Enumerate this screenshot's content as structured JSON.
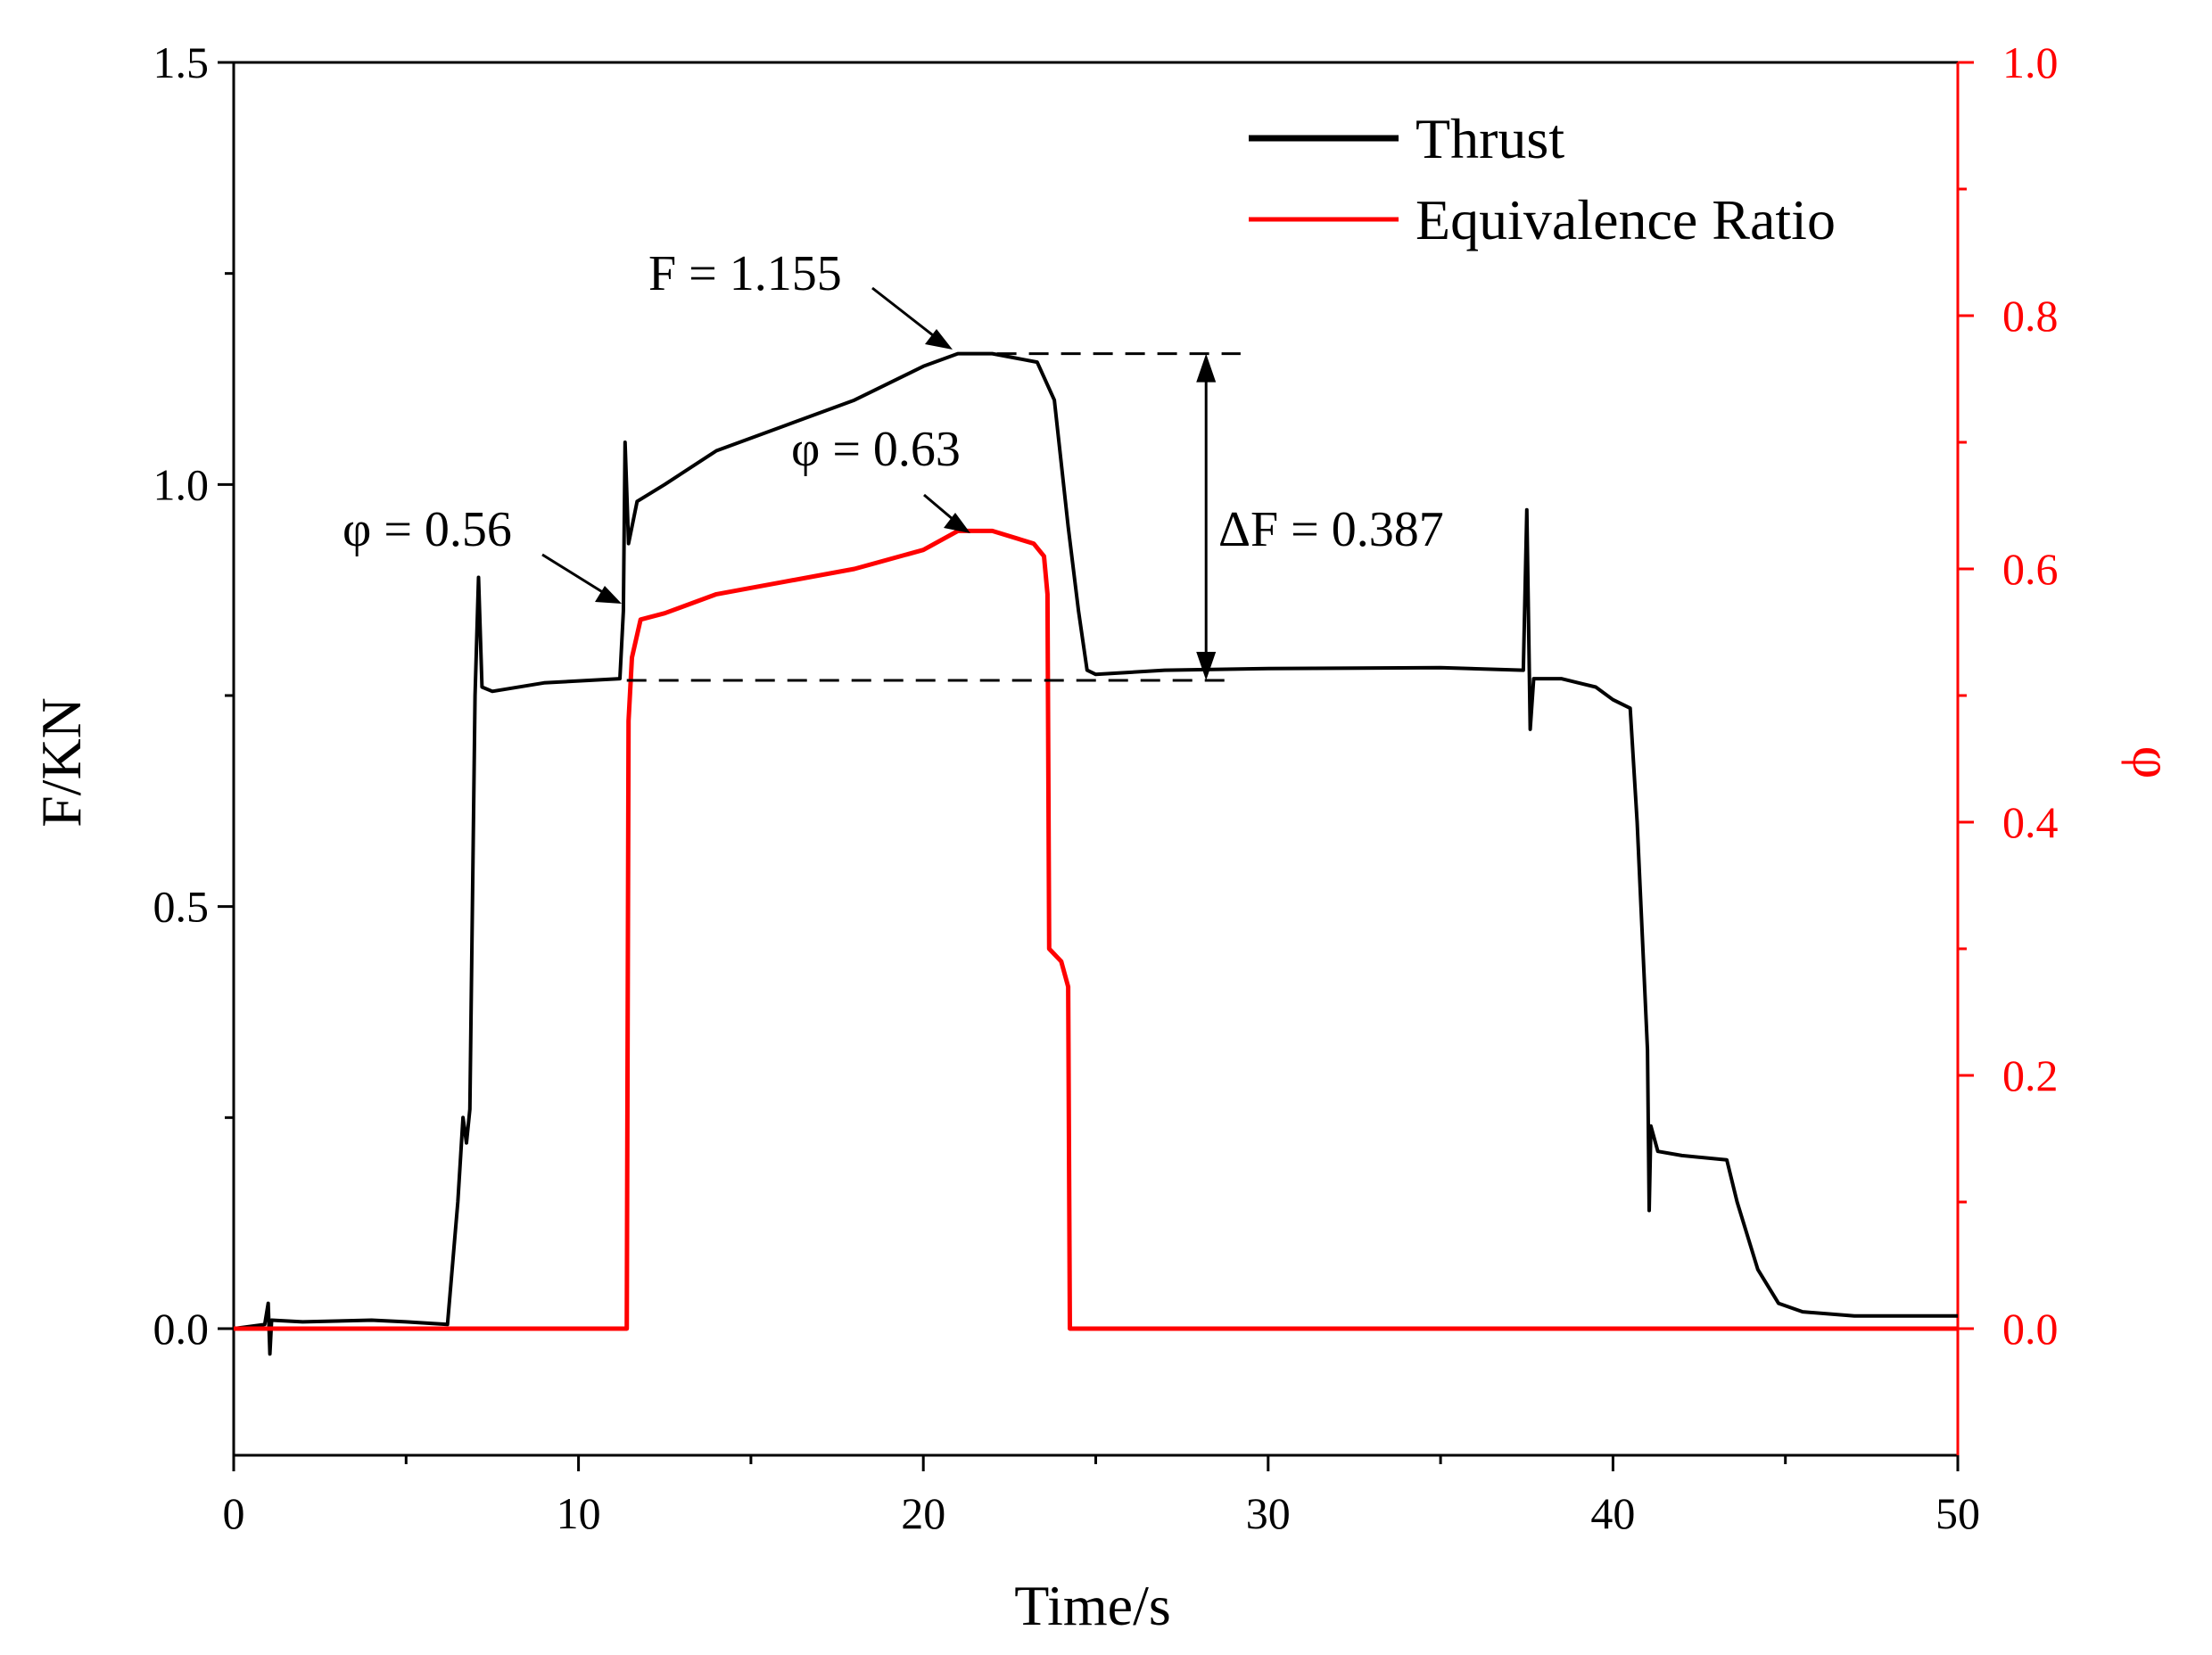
{
  "chart_data": {
    "type": "line",
    "x_axis": {
      "label": "Time/s",
      "range": [
        0,
        50
      ],
      "major_ticks": [
        0,
        10,
        20,
        30,
        40,
        50
      ],
      "tick_labels": [
        "0",
        "10",
        "20",
        "30",
        "40",
        "50"
      ],
      "minor_step": 5
    },
    "y_axis_left": {
      "label": "F/KN",
      "range": [
        -0.15,
        1.5
      ],
      "major_ticks": [
        0.0,
        0.5,
        1.0,
        1.5
      ],
      "tick_labels": [
        "0.0",
        "0.5",
        "1.0",
        "1.5"
      ],
      "minor_step": 0.25
    },
    "y_axis_right": {
      "label": "φ",
      "color": "#ff0000",
      "range": [
        -0.1,
        1.0
      ],
      "major_ticks": [
        0.0,
        0.2,
        0.4,
        0.6,
        0.8,
        1.0
      ],
      "tick_labels": [
        "0.0",
        "0.2",
        "0.4",
        "0.6",
        "0.8",
        "1.0"
      ],
      "minor_step": 0.1
    },
    "legend": {
      "position": "top-right",
      "entries": [
        {
          "label": "Thrust",
          "color": "#000000"
        },
        {
          "label": "Equivalence Ratio",
          "color": "#ff0000"
        }
      ]
    },
    "series": [
      {
        "name": "Thrust",
        "axis": "left",
        "color": "#000000",
        "points": [
          [
            0,
            0.0
          ],
          [
            0.9,
            0.005
          ],
          [
            1.0,
            0.03
          ],
          [
            1.05,
            -0.03
          ],
          [
            1.1,
            0.01
          ],
          [
            2,
            0.008
          ],
          [
            4,
            0.01
          ],
          [
            5,
            0.008
          ],
          [
            6.2,
            0.005
          ],
          [
            6.5,
            0.15
          ],
          [
            6.65,
            0.25
          ],
          [
            6.75,
            0.22
          ],
          [
            6.85,
            0.26
          ],
          [
            7.0,
            0.75
          ],
          [
            7.1,
            0.89
          ],
          [
            7.2,
            0.76
          ],
          [
            7.5,
            0.755
          ],
          [
            9,
            0.765
          ],
          [
            11.2,
            0.77
          ],
          [
            11.3,
            0.85
          ],
          [
            11.35,
            1.05
          ],
          [
            11.45,
            0.93
          ],
          [
            11.7,
            0.98
          ],
          [
            12.5,
            1.0
          ],
          [
            14,
            1.04
          ],
          [
            16,
            1.07
          ],
          [
            18,
            1.1
          ],
          [
            20,
            1.14
          ],
          [
            21,
            1.155
          ],
          [
            22,
            1.155
          ],
          [
            23.3,
            1.145
          ],
          [
            23.8,
            1.1
          ],
          [
            24.2,
            0.95
          ],
          [
            24.5,
            0.85
          ],
          [
            24.75,
            0.78
          ],
          [
            25,
            0.775
          ],
          [
            27,
            0.78
          ],
          [
            30,
            0.782
          ],
          [
            35,
            0.783
          ],
          [
            37.4,
            0.78
          ],
          [
            37.5,
            0.97
          ],
          [
            37.6,
            0.71
          ],
          [
            37.7,
            0.77
          ],
          [
            38.5,
            0.77
          ],
          [
            39.5,
            0.76
          ],
          [
            40,
            0.745
          ],
          [
            40.5,
            0.735
          ],
          [
            40.7,
            0.6
          ],
          [
            41,
            0.33
          ],
          [
            41.05,
            0.14
          ],
          [
            41.1,
            0.24
          ],
          [
            41.3,
            0.21
          ],
          [
            42,
            0.205
          ],
          [
            43.3,
            0.2
          ],
          [
            43.6,
            0.15
          ],
          [
            44.2,
            0.07
          ],
          [
            44.8,
            0.03
          ],
          [
            45.5,
            0.02
          ],
          [
            47,
            0.015
          ],
          [
            50,
            0.015
          ]
        ]
      },
      {
        "name": "Equivalence Ratio",
        "axis": "right",
        "color": "#ff0000",
        "points": [
          [
            0,
            0.0
          ],
          [
            11.4,
            0.0
          ],
          [
            11.45,
            0.48
          ],
          [
            11.55,
            0.53
          ],
          [
            11.8,
            0.56
          ],
          [
            12.5,
            0.565
          ],
          [
            14,
            0.58
          ],
          [
            16,
            0.59
          ],
          [
            18,
            0.6
          ],
          [
            20,
            0.615
          ],
          [
            21,
            0.63
          ],
          [
            22,
            0.63
          ],
          [
            23.2,
            0.62
          ],
          [
            23.5,
            0.61
          ],
          [
            23.6,
            0.58
          ],
          [
            23.65,
            0.3
          ],
          [
            24.0,
            0.29
          ],
          [
            24.2,
            0.27
          ],
          [
            24.25,
            0.0
          ],
          [
            50,
            0.0
          ]
        ]
      }
    ],
    "annotations": [
      {
        "text": "F = 1.155"
      },
      {
        "text": "φ = 0.63"
      },
      {
        "text": "φ = 0.56"
      },
      {
        "text": "ΔF = 0.387"
      }
    ],
    "reference_lines": {
      "upper_value": 1.155,
      "lower_value": 0.768,
      "delta": 0.387
    }
  }
}
